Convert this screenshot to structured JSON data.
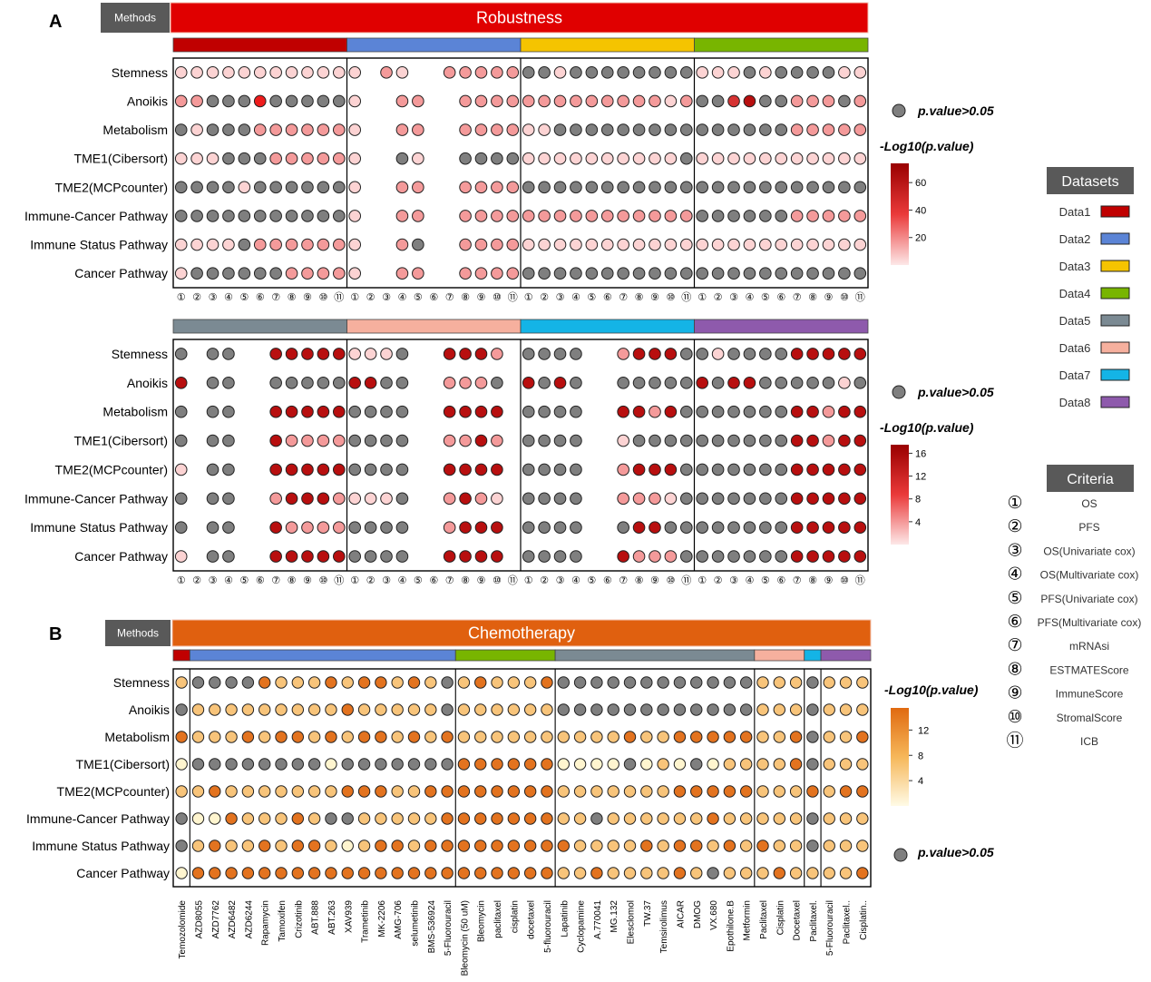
{
  "panel_labels": {
    "a": "A",
    "b": "B"
  },
  "methods_label": "Methods",
  "colors": {
    "robustness_bar": "#e00000",
    "chemo_bar": "#e0600f",
    "methods_box": "#595959",
    "na": "#7f7f7f",
    "datasets": [
      "#c00000",
      "#5b84d6",
      "#f5c400",
      "#78b500",
      "#7b8a93",
      "#f6b09e",
      "#14b4e6",
      "#8e5aac"
    ]
  },
  "rows": [
    "Stemness",
    "Anoikis",
    "Metabolism",
    "TME1(Cibersort)",
    "TME2(MCPcounter)",
    "Immune-Cancer Pathway",
    "Immune Status Pathway",
    "Cancer Pathway"
  ],
  "criteria_numbers": [
    "①",
    "②",
    "③",
    "④",
    "⑤",
    "⑥",
    "⑦",
    "⑧",
    "⑨",
    "⑩",
    "⑪"
  ],
  "legend": {
    "pvalue_label": "p.value>0.05",
    "log_label": "-Log10(p.value)",
    "top_ticks": [
      "60",
      "40",
      "20"
    ],
    "mid_ticks": [
      "16",
      "12",
      "8",
      "4"
    ],
    "chemo_ticks": [
      "12",
      "8",
      "4"
    ],
    "datasets_title": "Datasets",
    "datasets": [
      "Data1",
      "Data2",
      "Data3",
      "Data4",
      "Data5",
      "Data6",
      "Data7",
      "Data8"
    ],
    "criteria_title": "Criteria",
    "criteria": [
      {
        "num": "①",
        "label": "OS"
      },
      {
        "num": "②",
        "label": "PFS"
      },
      {
        "num": "③",
        "label": "OS(Univariate cox)"
      },
      {
        "num": "④",
        "label": "OS(Multivariate cox)"
      },
      {
        "num": "⑤",
        "label": "PFS(Univariate cox)"
      },
      {
        "num": "⑥",
        "label": "PFS(Multivariate cox)"
      },
      {
        "num": "⑦",
        "label": "mRNAsi"
      },
      {
        "num": "⑧",
        "label": "ESTMATEScore"
      },
      {
        "num": "⑨",
        "label": "ImmuneScore"
      },
      {
        "num": "⑩",
        "label": "StromalScore"
      },
      {
        "num": "⑪",
        "label": "ICB"
      }
    ]
  },
  "chart_data": [
    {
      "type": "dot-matrix",
      "title": "Robustness",
      "datasets": [
        "Data1",
        "Data2",
        "Data3",
        "Data4"
      ],
      "value_range": [
        0,
        70
      ],
      "cells": [
        "aaaaaaaaaaa|a.ba..bbbbb|nnannnnnnnn|aaanannnnaa",
        "bbnnnrnnnnn|a..bb..bbbb|bbbbbbbbbab|nndDnnbbbnb",
        "nannnbbbbbb|a..bb..bbbb|aannnnnnnnn|nnnnnnbbbbb",
        "aaannnbbbbb|a..na..nnnn|aaaaaaaaaan|aaaaaaaaaaa",
        "nnnnannnnnn|a..bb..bbbb|nnnnnnnnnnn|nnnnnnnnnnn",
        "nnnnnnnnnnn|a..bb..bbbb|bbbbbbbbbbb|nnnnnnbbbbb",
        "aaaanbbbbbb|a..bn..bbbb|aaaaaaaaaaa|aaaaaaaaaaa",
        "annnnnnbbbb|a..bb..bbbb|nnnnnnnnnnn|nnnnnnnnnnn"
      ]
    },
    {
      "type": "dot-matrix",
      "title": "Robustness",
      "datasets": [
        "Data5",
        "Data6",
        "Data7",
        "Data8"
      ],
      "value_range": [
        0,
        17
      ],
      "cells": [
        "n.nn..DDDDD|aaan..DDDb|nnnn..bDDDn|nannnnDDDDD",
        "D.nn..nnnnn|DDnn..bbbn|DnDn..nnnnn|DnDDnnnnnan",
        "n.nn..DDDDD|nnnn..DDDD|nnnn..DDbDn|nnnnnnDDbDD",
        "n.nn..Dbbbb|nnnn..bbDb|nnnn..annnn|nnnnnnDDbDD",
        "a.nn..DDDDD|nnnn..DDDD|nnnn..bDDDn|nnnnnnDDDDD",
        "n.nn..bDDDb|aaan..bDba|nnnn..bbban|nnnnnnDDDDD",
        "n.nn..Dbbbb|nnnn..bDDD|nnnn..nDDnn|nnnnnnDDDDD",
        "a.nn..DDDDD|nnnn..DDDD|nnnn..Dbbbn|nnnnnnDDDDD"
      ]
    },
    {
      "type": "dot-matrix",
      "title": "Chemotherapy",
      "drugs": [
        "Temozolomide",
        "AZD8055",
        "AZD7762",
        "AZD6482",
        "AZD6244",
        "Rapamycin",
        "Tamoxifen",
        "Crizotinib",
        "ABT.888",
        "ABT.263",
        "XAV939",
        "Trametinib",
        "MK-2206",
        "AMG-706",
        "selumetinib",
        "BMS-536924",
        "5-Fluorouracil",
        "Bleomycin (50 uM)",
        "Bleomycin",
        "paclitaxel",
        "cisplatin",
        "docetaxel",
        "5-fluorouracil",
        "Lapatinib",
        "Cyclopamine",
        "A.770041",
        "MG.132",
        "Elesclomol",
        "TW.37",
        "Temsirolimus",
        "AICAR",
        "DMOG",
        "VX.680",
        "Epothilone.B",
        "Metformin",
        "Paclitaxel",
        "Cisplatin",
        "Docetaxel",
        "Paclitaxel.",
        "5-Fluorouracil",
        "Paclitaxel..",
        "Cisplatin.."
      ],
      "group_sizes": [
        1,
        16,
        6,
        12,
        3,
        1,
        3
      ],
      "group_datasets": [
        "Data1",
        "Data2",
        "Data4",
        "Data5",
        "Data6",
        "Data7",
        "Data8"
      ],
      "value_range": [
        0,
        15
      ],
      "cells": [
        "m|nnnnOmmmOmOOmOmn|mOmmmO|nnnnnnnnnnnn|mmm|n|mmm",
        "n|mmmmmmmmmOmmmmmn|mmmmmm|nnnnnnnnnnnn|mmm|n|mmm",
        "O|mmmOmOOmOmOOmOmO|mmmmmm|mmmmOmmOOOOO|mmO|n|mmO",
        "y|nnnnnnnnynnnnnnn|OOOOOO|yyyynymynymm|mmO|n|mmm",
        "m|mOmmmmmmmOOOmmOO|OOOOOO|mmmmmmmOOOOO|mmm|O|mOO",
        "n|yyOmmmOmnnmmmmmO|OOOOOO|mmnmmmmmmOmm|mmm|n|mmm",
        "n|mOmmOmOOmymOOmOO|OOOOOO|OmmmmOmOOmOm|Omm|n|mmm",
        "y|OOOOOOOOOOOOOOOO|OOOOOO|mmOmmmmOmnmm|mOm|m|mmO"
      ]
    }
  ]
}
